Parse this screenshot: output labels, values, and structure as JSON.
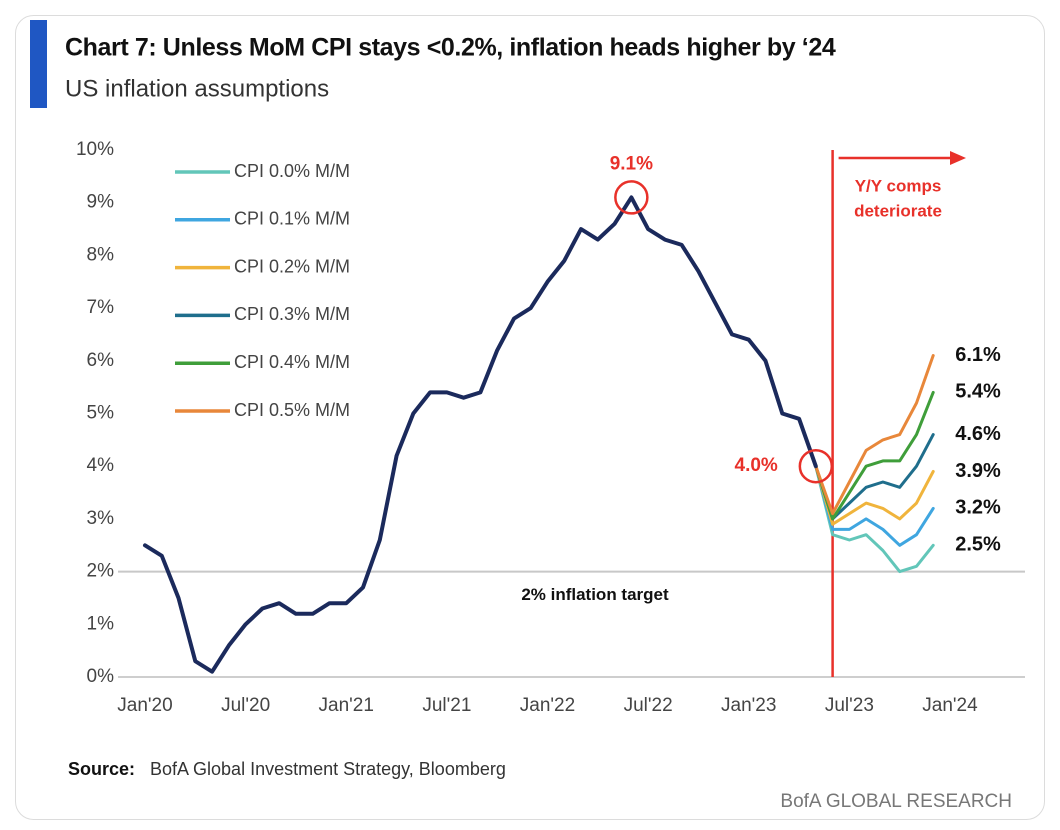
{
  "chart_data": {
    "type": "line",
    "title": "Chart 7:  Unless MoM CPI stays <0.2%, inflation heads higher by ‘24",
    "subtitle": "US inflation assumptions",
    "categories": [
      "Jan'20",
      null,
      null,
      null,
      null,
      null,
      "Jul'20",
      null,
      null,
      null,
      null,
      null,
      "Jan'21",
      null,
      null,
      null,
      null,
      null,
      "Jul'21",
      null,
      null,
      null,
      null,
      null,
      "Jan'22",
      null,
      null,
      null,
      null,
      null,
      "Jul'22",
      null,
      null,
      null,
      null,
      null,
      "Jan'23",
      null,
      null,
      null,
      null,
      null,
      "Jul'23",
      null,
      null,
      null,
      null,
      null,
      "Jan'24"
    ],
    "series": [
      {
        "color": "#1b2a5c",
        "values": [
          2.5,
          2.3,
          1.5,
          0.3,
          0.1,
          0.6,
          1.0,
          1.3,
          1.4,
          1.2,
          1.2,
          1.4,
          1.4,
          1.7,
          2.6,
          4.2,
          5.0,
          5.4,
          5.4,
          5.3,
          5.4,
          6.2,
          6.8,
          7.0,
          7.5,
          7.9,
          8.5,
          8.3,
          8.6,
          9.1,
          8.5,
          8.3,
          8.2,
          7.7,
          7.1,
          6.5,
          6.4,
          6.0,
          5.0,
          4.9,
          4.0,
          null,
          null,
          null,
          null,
          null,
          null,
          null,
          null
        ],
        "value_labels": [
          null,
          null,
          null,
          null,
          null,
          null,
          null,
          null,
          null,
          null,
          null,
          null,
          null,
          null,
          null,
          null,
          null,
          null,
          null,
          null,
          null,
          null,
          null,
          null,
          null,
          null,
          null,
          null,
          null,
          "9.1%",
          null,
          null,
          null,
          null,
          null,
          null,
          null,
          null,
          null,
          null,
          "4.0%",
          null,
          null,
          null,
          null,
          null,
          null,
          null,
          null
        ]
      },
      {
        "name": "CPI 0.0% M/M",
        "color": "#62c6b9",
        "values": [
          null,
          null,
          null,
          null,
          null,
          null,
          null,
          null,
          null,
          null,
          null,
          null,
          null,
          null,
          null,
          null,
          null,
          null,
          null,
          null,
          null,
          null,
          null,
          null,
          null,
          null,
          null,
          null,
          null,
          null,
          null,
          null,
          null,
          null,
          null,
          null,
          null,
          null,
          null,
          null,
          4.0,
          2.7,
          2.6,
          2.7,
          2.4,
          2.0,
          2.1,
          2.5,
          null
        ],
        "value_labels": [
          null,
          null,
          null,
          null,
          null,
          null,
          null,
          null,
          null,
          null,
          null,
          null,
          null,
          null,
          null,
          null,
          null,
          null,
          null,
          null,
          null,
          null,
          null,
          null,
          null,
          null,
          null,
          null,
          null,
          null,
          null,
          null,
          null,
          null,
          null,
          null,
          null,
          null,
          null,
          null,
          null,
          null,
          null,
          null,
          null,
          null,
          null,
          "2.5%",
          null
        ]
      },
      {
        "name": "CPI 0.1% M/M",
        "color": "#3fa6e0",
        "values": [
          null,
          null,
          null,
          null,
          null,
          null,
          null,
          null,
          null,
          null,
          null,
          null,
          null,
          null,
          null,
          null,
          null,
          null,
          null,
          null,
          null,
          null,
          null,
          null,
          null,
          null,
          null,
          null,
          null,
          null,
          null,
          null,
          null,
          null,
          null,
          null,
          null,
          null,
          null,
          null,
          4.0,
          2.8,
          2.8,
          3.0,
          2.8,
          2.5,
          2.7,
          3.2,
          null
        ],
        "value_labels": [
          null,
          null,
          null,
          null,
          null,
          null,
          null,
          null,
          null,
          null,
          null,
          null,
          null,
          null,
          null,
          null,
          null,
          null,
          null,
          null,
          null,
          null,
          null,
          null,
          null,
          null,
          null,
          null,
          null,
          null,
          null,
          null,
          null,
          null,
          null,
          null,
          null,
          null,
          null,
          null,
          null,
          null,
          null,
          null,
          null,
          null,
          null,
          "3.2%",
          null
        ]
      },
      {
        "name": "CPI 0.2% M/M",
        "color": "#f0b43c",
        "values": [
          null,
          null,
          null,
          null,
          null,
          null,
          null,
          null,
          null,
          null,
          null,
          null,
          null,
          null,
          null,
          null,
          null,
          null,
          null,
          null,
          null,
          null,
          null,
          null,
          null,
          null,
          null,
          null,
          null,
          null,
          null,
          null,
          null,
          null,
          null,
          null,
          null,
          null,
          null,
          null,
          4.0,
          2.9,
          3.1,
          3.3,
          3.2,
          3.0,
          3.3,
          3.9,
          null
        ],
        "value_labels": [
          null,
          null,
          null,
          null,
          null,
          null,
          null,
          null,
          null,
          null,
          null,
          null,
          null,
          null,
          null,
          null,
          null,
          null,
          null,
          null,
          null,
          null,
          null,
          null,
          null,
          null,
          null,
          null,
          null,
          null,
          null,
          null,
          null,
          null,
          null,
          null,
          null,
          null,
          null,
          null,
          null,
          null,
          null,
          null,
          null,
          null,
          null,
          "3.9%",
          null
        ]
      },
      {
        "name": "CPI 0.3% M/M",
        "color": "#1f6e8c",
        "values": [
          null,
          null,
          null,
          null,
          null,
          null,
          null,
          null,
          null,
          null,
          null,
          null,
          null,
          null,
          null,
          null,
          null,
          null,
          null,
          null,
          null,
          null,
          null,
          null,
          null,
          null,
          null,
          null,
          null,
          null,
          null,
          null,
          null,
          null,
          null,
          null,
          null,
          null,
          null,
          null,
          4.0,
          3.0,
          3.3,
          3.6,
          3.7,
          3.6,
          4.0,
          4.6,
          null
        ],
        "value_labels": [
          null,
          null,
          null,
          null,
          null,
          null,
          null,
          null,
          null,
          null,
          null,
          null,
          null,
          null,
          null,
          null,
          null,
          null,
          null,
          null,
          null,
          null,
          null,
          null,
          null,
          null,
          null,
          null,
          null,
          null,
          null,
          null,
          null,
          null,
          null,
          null,
          null,
          null,
          null,
          null,
          null,
          null,
          null,
          null,
          null,
          null,
          null,
          "4.6%",
          null
        ]
      },
      {
        "name": "CPI 0.4% M/M",
        "color": "#3f9e3a",
        "values": [
          null,
          null,
          null,
          null,
          null,
          null,
          null,
          null,
          null,
          null,
          null,
          null,
          null,
          null,
          null,
          null,
          null,
          null,
          null,
          null,
          null,
          null,
          null,
          null,
          null,
          null,
          null,
          null,
          null,
          null,
          null,
          null,
          null,
          null,
          null,
          null,
          null,
          null,
          null,
          null,
          4.0,
          3.0,
          3.5,
          4.0,
          4.1,
          4.1,
          4.6,
          5.4,
          null
        ],
        "value_labels": [
          null,
          null,
          null,
          null,
          null,
          null,
          null,
          null,
          null,
          null,
          null,
          null,
          null,
          null,
          null,
          null,
          null,
          null,
          null,
          null,
          null,
          null,
          null,
          null,
          null,
          null,
          null,
          null,
          null,
          null,
          null,
          null,
          null,
          null,
          null,
          null,
          null,
          null,
          null,
          null,
          null,
          null,
          null,
          null,
          null,
          null,
          null,
          "5.4%",
          null
        ]
      },
      {
        "name": "CPI 0.5% M/M",
        "color": "#e8873a",
        "values": [
          null,
          null,
          null,
          null,
          null,
          null,
          null,
          null,
          null,
          null,
          null,
          null,
          null,
          null,
          null,
          null,
          null,
          null,
          null,
          null,
          null,
          null,
          null,
          null,
          null,
          null,
          null,
          null,
          null,
          null,
          null,
          null,
          null,
          null,
          null,
          null,
          null,
          null,
          null,
          null,
          4.0,
          3.1,
          3.7,
          4.3,
          4.5,
          4.6,
          5.2,
          6.1,
          null
        ],
        "value_labels": [
          null,
          null,
          null,
          null,
          null,
          null,
          null,
          null,
          null,
          null,
          null,
          null,
          null,
          null,
          null,
          null,
          null,
          null,
          null,
          null,
          null,
          null,
          null,
          null,
          null,
          null,
          null,
          null,
          null,
          null,
          null,
          null,
          null,
          null,
          null,
          null,
          null,
          null,
          null,
          null,
          null,
          null,
          null,
          null,
          null,
          null,
          null,
          "6.1%",
          null
        ]
      }
    ],
    "ylim": [
      0,
      10
    ],
    "yticks": [
      {
        "value": 0,
        "label": "0%"
      },
      {
        "value": 1,
        "label": "1%"
      },
      {
        "value": 2,
        "label": "2%"
      },
      {
        "value": 3,
        "label": "3%"
      },
      {
        "value": 4,
        "label": "4%"
      },
      {
        "value": 5,
        "label": "5%"
      },
      {
        "value": 6,
        "label": "6%"
      },
      {
        "value": 7,
        "label": "7%"
      },
      {
        "value": 8,
        "label": "8%"
      },
      {
        "value": 9,
        "label": "9%"
      },
      {
        "value": 10,
        "label": "10%"
      }
    ],
    "grid": false,
    "legend": "top-left",
    "highlight_color": "#e8312a",
    "reference_line": {
      "value": 2,
      "label": "2% inflation target",
      "color": "#c8c8c8"
    },
    "annotation": {
      "lines": [
        "Y/Y comps",
        "deteriorate"
      ],
      "color": "#e8312a"
    },
    "source_label": "Source:",
    "source": "BofA Global Investment Strategy, Bloomberg",
    "footer": "BofA GLOBAL RESEARCH"
  }
}
